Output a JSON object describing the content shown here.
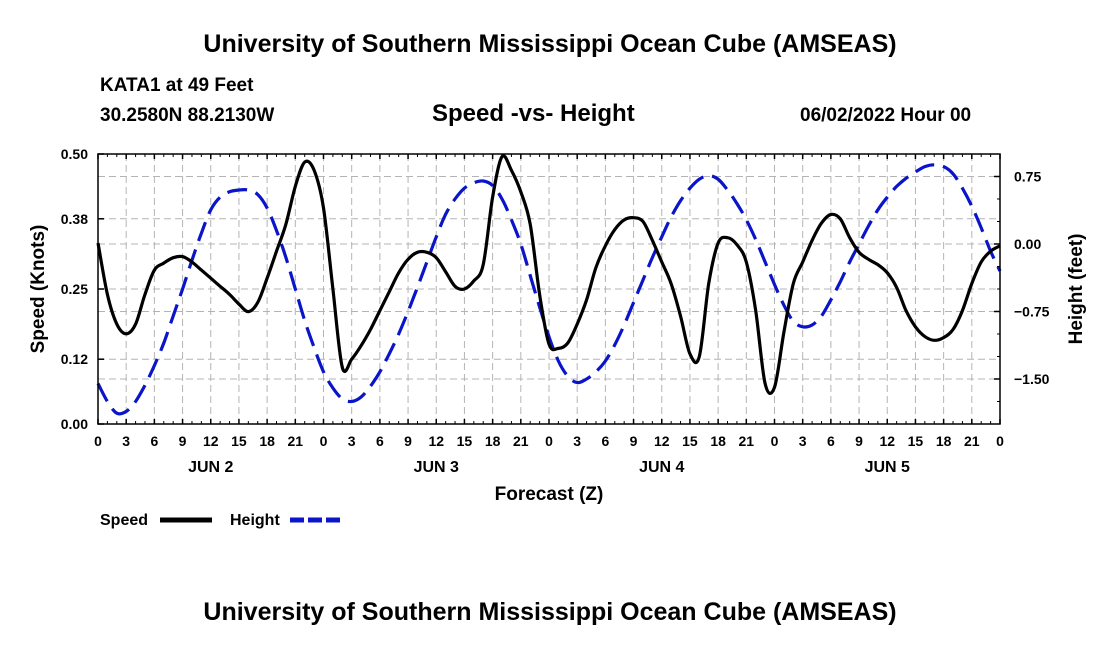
{
  "header": {
    "top_title": "University of Southern Mississippi Ocean Cube (AMSEAS)",
    "station": "KATA1 at 49 Feet",
    "coords": "30.2580N  88.2130W",
    "subtitle": "Speed -vs- Height",
    "datetime": "06/02/2022 Hour 00",
    "bottom_title": "University of Southern Mississippi Ocean Cube (AMSEAS)"
  },
  "legend": {
    "speed_label": "Speed",
    "height_label": "Height"
  },
  "chart_data": {
    "type": "line",
    "title": "Speed -vs- Height",
    "xlabel": "Forecast (Z)",
    "ylabel": "Speed (Knots)",
    "y2label": "Height (feet)",
    "x_unit": "hours from forecast start",
    "xlim": [
      0,
      96
    ],
    "ylim": [
      0,
      0.5
    ],
    "y2lim": [
      -2.0,
      1.0
    ],
    "x_ticks": [
      0,
      3,
      6,
      9,
      12,
      15,
      18,
      21,
      24,
      27,
      30,
      33,
      36,
      39,
      42,
      45,
      48,
      51,
      54,
      57,
      60,
      63,
      66,
      69,
      72,
      75,
      78,
      81,
      84,
      87,
      90,
      93,
      96
    ],
    "x_tick_labels": [
      "0",
      "3",
      "6",
      "9",
      "12",
      "15",
      "18",
      "21",
      "0",
      "3",
      "6",
      "9",
      "12",
      "15",
      "18",
      "21",
      "0",
      "3",
      "6",
      "9",
      "12",
      "15",
      "18",
      "21",
      "0",
      "3",
      "6",
      "9",
      "12",
      "15",
      "18",
      "21",
      "0"
    ],
    "day_labels": [
      {
        "x": 12,
        "label": "JUN 2"
      },
      {
        "x": 36,
        "label": "JUN 3"
      },
      {
        "x": 60,
        "label": "JUN 4"
      },
      {
        "x": 84,
        "label": "JUN 5"
      }
    ],
    "y_ticks": [
      0.0,
      0.12,
      0.25,
      0.38,
      0.5
    ],
    "y_tick_labels": [
      "0.00",
      "0.12",
      "0.25",
      "0.38",
      "0.50"
    ],
    "y2_ticks": [
      -1.5,
      -0.75,
      0.0,
      0.75
    ],
    "y2_tick_labels": [
      "−1.50",
      "−0.75",
      "0.00",
      "0.75"
    ],
    "series": [
      {
        "name": "Speed",
        "axis": "left",
        "color": "#000000",
        "dash": "solid",
        "x": [
          0,
          1,
          2,
          3,
          4,
          5,
          6,
          7,
          8,
          9,
          10,
          11,
          12,
          13,
          14,
          15,
          16,
          17,
          18,
          19,
          20,
          21,
          22,
          23,
          24,
          25,
          26,
          27,
          28,
          29,
          30,
          31,
          32,
          33,
          34,
          35,
          36,
          37,
          38,
          39,
          40,
          41,
          42,
          43,
          44,
          45,
          46,
          47,
          48,
          49,
          50,
          51,
          52,
          53,
          54,
          55,
          56,
          57,
          58,
          59,
          60,
          61,
          62,
          63,
          64,
          65,
          66,
          67,
          68,
          69,
          70,
          71,
          72,
          73,
          74,
          75,
          76,
          77,
          78,
          79,
          80,
          81,
          82,
          83,
          84,
          85,
          86,
          87,
          88,
          89,
          90,
          91,
          92,
          93,
          94,
          95,
          96
        ],
        "values": [
          0.335,
          0.24,
          0.185,
          0.167,
          0.185,
          0.24,
          0.285,
          0.298,
          0.308,
          0.31,
          0.3,
          0.285,
          0.27,
          0.255,
          0.24,
          0.222,
          0.208,
          0.225,
          0.27,
          0.32,
          0.37,
          0.44,
          0.485,
          0.47,
          0.4,
          0.25,
          0.105,
          0.12,
          0.145,
          0.175,
          0.21,
          0.245,
          0.28,
          0.305,
          0.318,
          0.318,
          0.308,
          0.282,
          0.255,
          0.25,
          0.265,
          0.295,
          0.42,
          0.495,
          0.47,
          0.43,
          0.37,
          0.24,
          0.148,
          0.14,
          0.15,
          0.185,
          0.23,
          0.29,
          0.33,
          0.36,
          0.378,
          0.382,
          0.375,
          0.34,
          0.3,
          0.26,
          0.2,
          0.13,
          0.125,
          0.26,
          0.335,
          0.345,
          0.332,
          0.3,
          0.21,
          0.075,
          0.068,
          0.17,
          0.26,
          0.3,
          0.34,
          0.372,
          0.388,
          0.38,
          0.345,
          0.318,
          0.305,
          0.295,
          0.28,
          0.253,
          0.21,
          0.18,
          0.162,
          0.155,
          0.16,
          0.175,
          0.21,
          0.26,
          0.3,
          0.32,
          0.33
        ]
      },
      {
        "name": "Height",
        "axis": "right",
        "color": "#0a14c8",
        "dash": "dashed",
        "x": [
          0,
          1,
          2,
          3,
          4,
          5,
          6,
          7,
          8,
          9,
          10,
          11,
          12,
          13,
          14,
          15,
          16,
          17,
          18,
          19,
          20,
          21,
          22,
          23,
          24,
          25,
          26,
          27,
          28,
          29,
          30,
          31,
          32,
          33,
          34,
          35,
          36,
          37,
          38,
          39,
          40,
          41,
          42,
          43,
          44,
          45,
          46,
          47,
          48,
          49,
          50,
          51,
          52,
          53,
          54,
          55,
          56,
          57,
          58,
          59,
          60,
          61,
          62,
          63,
          64,
          65,
          66,
          67,
          68,
          69,
          70,
          71,
          72,
          73,
          74,
          75,
          76,
          77,
          78,
          79,
          80,
          81,
          82,
          83,
          84,
          85,
          86,
          87,
          88,
          89,
          90,
          91,
          92,
          93,
          94,
          95,
          96
        ],
        "values": [
          -1.55,
          -1.75,
          -1.88,
          -1.86,
          -1.75,
          -1.57,
          -1.35,
          -1.1,
          -0.8,
          -0.5,
          -0.18,
          0.12,
          0.38,
          0.52,
          0.58,
          0.6,
          0.6,
          0.55,
          0.4,
          0.15,
          -0.15,
          -0.5,
          -0.85,
          -1.15,
          -1.42,
          -1.6,
          -1.72,
          -1.75,
          -1.7,
          -1.58,
          -1.42,
          -1.22,
          -1.0,
          -0.75,
          -0.48,
          -0.2,
          0.08,
          0.33,
          0.5,
          0.62,
          0.68,
          0.7,
          0.65,
          0.5,
          0.27,
          0.0,
          -0.35,
          -0.7,
          -1.03,
          -1.3,
          -1.47,
          -1.54,
          -1.5,
          -1.42,
          -1.3,
          -1.12,
          -0.9,
          -0.65,
          -0.4,
          -0.15,
          0.08,
          0.3,
          0.48,
          0.62,
          0.72,
          0.76,
          0.72,
          0.6,
          0.45,
          0.27,
          0.05,
          -0.2,
          -0.45,
          -0.68,
          -0.86,
          -0.92,
          -0.9,
          -0.8,
          -0.62,
          -0.42,
          -0.2,
          0.0,
          0.2,
          0.38,
          0.52,
          0.64,
          0.73,
          0.8,
          0.86,
          0.88,
          0.86,
          0.78,
          0.62,
          0.42,
          0.18,
          -0.08,
          -0.3
        ]
      }
    ]
  }
}
